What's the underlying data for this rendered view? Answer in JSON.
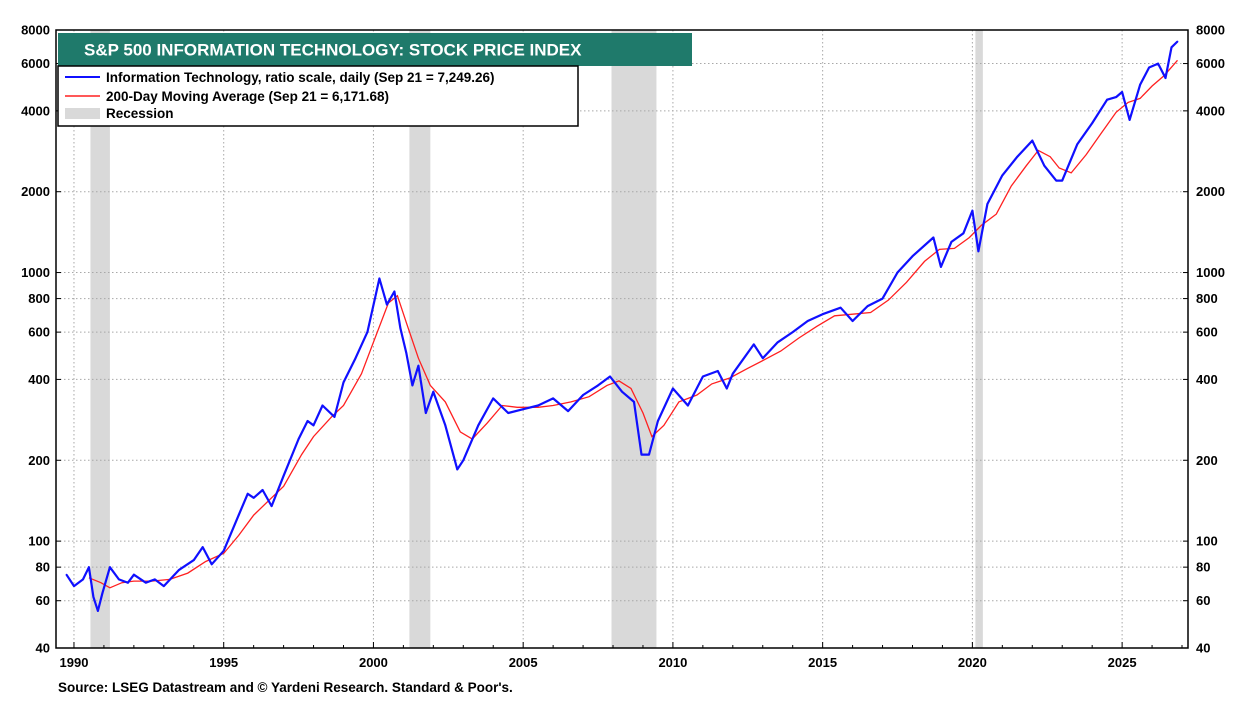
{
  "chart_data": {
    "type": "line",
    "title": "S&P 500 INFORMATION TECHNOLOGY: STOCK PRICE INDEX",
    "source": "Source: LSEG Datastream and © Yardeni Research. Standard & Poor's.",
    "y_scale": "log",
    "ylim": [
      40,
      8000
    ],
    "xlim": [
      1989.4,
      2027.2
    ],
    "y_ticks": [
      40,
      60,
      80,
      100,
      200,
      400,
      600,
      800,
      1000,
      2000,
      4000,
      6000,
      8000
    ],
    "x_ticks": [
      1990,
      1995,
      2000,
      2005,
      2010,
      2015,
      2020,
      2025
    ],
    "grid": true,
    "legend_placement": "top-left",
    "recessions": [
      [
        1990.55,
        1991.2
      ],
      [
        2001.2,
        2001.9
      ],
      [
        2007.95,
        2009.45
      ],
      [
        2020.1,
        2020.35
      ]
    ],
    "series": [
      {
        "name": "Information Technology, ratio scale, daily (Sep 21 = 7,249.26)",
        "color": "#1010ff",
        "points": [
          [
            1989.75,
            75
          ],
          [
            1990.0,
            68
          ],
          [
            1990.3,
            72
          ],
          [
            1990.5,
            80
          ],
          [
            1990.65,
            62
          ],
          [
            1990.8,
            55
          ],
          [
            1990.95,
            64
          ],
          [
            1991.2,
            80
          ],
          [
            1991.5,
            72
          ],
          [
            1991.8,
            70
          ],
          [
            1992.0,
            75
          ],
          [
            1992.4,
            70
          ],
          [
            1992.7,
            72
          ],
          [
            1993.0,
            68
          ],
          [
            1993.5,
            78
          ],
          [
            1994.0,
            85
          ],
          [
            1994.3,
            95
          ],
          [
            1994.6,
            82
          ],
          [
            1995.0,
            92
          ],
          [
            1995.5,
            125
          ],
          [
            1995.8,
            150
          ],
          [
            1996.0,
            145
          ],
          [
            1996.3,
            155
          ],
          [
            1996.6,
            135
          ],
          [
            1997.0,
            175
          ],
          [
            1997.5,
            240
          ],
          [
            1997.8,
            280
          ],
          [
            1998.0,
            270
          ],
          [
            1998.3,
            320
          ],
          [
            1998.7,
            290
          ],
          [
            1999.0,
            390
          ],
          [
            1999.4,
            480
          ],
          [
            1999.8,
            600
          ],
          [
            2000.2,
            950
          ],
          [
            2000.45,
            760
          ],
          [
            2000.7,
            850
          ],
          [
            2000.9,
            620
          ],
          [
            2001.1,
            500
          ],
          [
            2001.3,
            380
          ],
          [
            2001.5,
            450
          ],
          [
            2001.75,
            300
          ],
          [
            2002.0,
            360
          ],
          [
            2002.4,
            270
          ],
          [
            2002.8,
            185
          ],
          [
            2003.0,
            200
          ],
          [
            2003.5,
            270
          ],
          [
            2004.0,
            340
          ],
          [
            2004.5,
            300
          ],
          [
            2005.0,
            310
          ],
          [
            2005.5,
            320
          ],
          [
            2006.0,
            340
          ],
          [
            2006.5,
            305
          ],
          [
            2007.0,
            350
          ],
          [
            2007.5,
            380
          ],
          [
            2007.9,
            410
          ],
          [
            2008.3,
            360
          ],
          [
            2008.7,
            330
          ],
          [
            2008.95,
            210
          ],
          [
            2009.2,
            210
          ],
          [
            2009.5,
            280
          ],
          [
            2010.0,
            370
          ],
          [
            2010.5,
            320
          ],
          [
            2011.0,
            410
          ],
          [
            2011.5,
            430
          ],
          [
            2011.8,
            370
          ],
          [
            2012.0,
            420
          ],
          [
            2012.7,
            540
          ],
          [
            2013.0,
            480
          ],
          [
            2013.5,
            550
          ],
          [
            2014.0,
            600
          ],
          [
            2014.5,
            660
          ],
          [
            2015.0,
            700
          ],
          [
            2015.6,
            740
          ],
          [
            2016.0,
            660
          ],
          [
            2016.5,
            750
          ],
          [
            2017.0,
            800
          ],
          [
            2017.5,
            1000
          ],
          [
            2018.0,
            1150
          ],
          [
            2018.7,
            1350
          ],
          [
            2018.95,
            1050
          ],
          [
            2019.3,
            1300
          ],
          [
            2019.7,
            1400
          ],
          [
            2020.0,
            1700
          ],
          [
            2020.2,
            1200
          ],
          [
            2020.5,
            1800
          ],
          [
            2021.0,
            2300
          ],
          [
            2021.5,
            2700
          ],
          [
            2022.0,
            3100
          ],
          [
            2022.4,
            2500
          ],
          [
            2022.8,
            2200
          ],
          [
            2023.0,
            2200
          ],
          [
            2023.5,
            3000
          ],
          [
            2024.0,
            3600
          ],
          [
            2024.5,
            4400
          ],
          [
            2024.8,
            4500
          ],
          [
            2025.0,
            4700
          ],
          [
            2025.25,
            3700
          ],
          [
            2025.6,
            5000
          ],
          [
            2025.9,
            5800
          ],
          [
            2026.2,
            6000
          ],
          [
            2026.45,
            5300
          ],
          [
            2026.65,
            6900
          ],
          [
            2026.85,
            7249
          ]
        ]
      },
      {
        "name": "200-Day Moving Average (Sep 21 = 6,171.68)",
        "color": "#ff2020",
        "points": [
          [
            1990.5,
            73
          ],
          [
            1990.9,
            70
          ],
          [
            1991.2,
            67
          ],
          [
            1991.6,
            70
          ],
          [
            1992.0,
            71
          ],
          [
            1992.6,
            71
          ],
          [
            1993.2,
            72
          ],
          [
            1993.8,
            76
          ],
          [
            1994.4,
            84
          ],
          [
            1995.0,
            90
          ],
          [
            1995.5,
            105
          ],
          [
            1996.0,
            125
          ],
          [
            1996.6,
            145
          ],
          [
            1997.0,
            160
          ],
          [
            1997.6,
            210
          ],
          [
            1998.0,
            245
          ],
          [
            1998.6,
            290
          ],
          [
            1999.0,
            320
          ],
          [
            1999.6,
            420
          ],
          [
            2000.0,
            550
          ],
          [
            2000.5,
            770
          ],
          [
            2000.8,
            820
          ],
          [
            2001.1,
            650
          ],
          [
            2001.5,
            480
          ],
          [
            2001.9,
            380
          ],
          [
            2002.4,
            330
          ],
          [
            2002.9,
            255
          ],
          [
            2003.3,
            240
          ],
          [
            2003.8,
            275
          ],
          [
            2004.3,
            320
          ],
          [
            2004.8,
            315
          ],
          [
            2005.5,
            315
          ],
          [
            2006.0,
            320
          ],
          [
            2006.6,
            330
          ],
          [
            2007.2,
            345
          ],
          [
            2007.8,
            380
          ],
          [
            2008.2,
            395
          ],
          [
            2008.6,
            370
          ],
          [
            2009.0,
            300
          ],
          [
            2009.3,
            245
          ],
          [
            2009.7,
            270
          ],
          [
            2010.2,
            330
          ],
          [
            2010.8,
            350
          ],
          [
            2011.3,
            385
          ],
          [
            2011.9,
            405
          ],
          [
            2012.5,
            440
          ],
          [
            2013.0,
            470
          ],
          [
            2013.6,
            510
          ],
          [
            2014.2,
            570
          ],
          [
            2014.8,
            630
          ],
          [
            2015.4,
            690
          ],
          [
            2016.0,
            700
          ],
          [
            2016.6,
            710
          ],
          [
            2017.2,
            790
          ],
          [
            2017.8,
            920
          ],
          [
            2018.4,
            1100
          ],
          [
            2018.9,
            1220
          ],
          [
            2019.4,
            1230
          ],
          [
            2019.9,
            1350
          ],
          [
            2020.3,
            1500
          ],
          [
            2020.8,
            1650
          ],
          [
            2021.3,
            2100
          ],
          [
            2021.8,
            2500
          ],
          [
            2022.2,
            2850
          ],
          [
            2022.6,
            2700
          ],
          [
            2022.9,
            2450
          ],
          [
            2023.3,
            2350
          ],
          [
            2023.8,
            2750
          ],
          [
            2024.3,
            3300
          ],
          [
            2024.8,
            3950
          ],
          [
            2025.2,
            4300
          ],
          [
            2025.6,
            4450
          ],
          [
            2026.0,
            4950
          ],
          [
            2026.4,
            5400
          ],
          [
            2026.85,
            6172
          ]
        ]
      },
      {
        "name": "Recession",
        "color": "#d9d9d9"
      }
    ]
  }
}
